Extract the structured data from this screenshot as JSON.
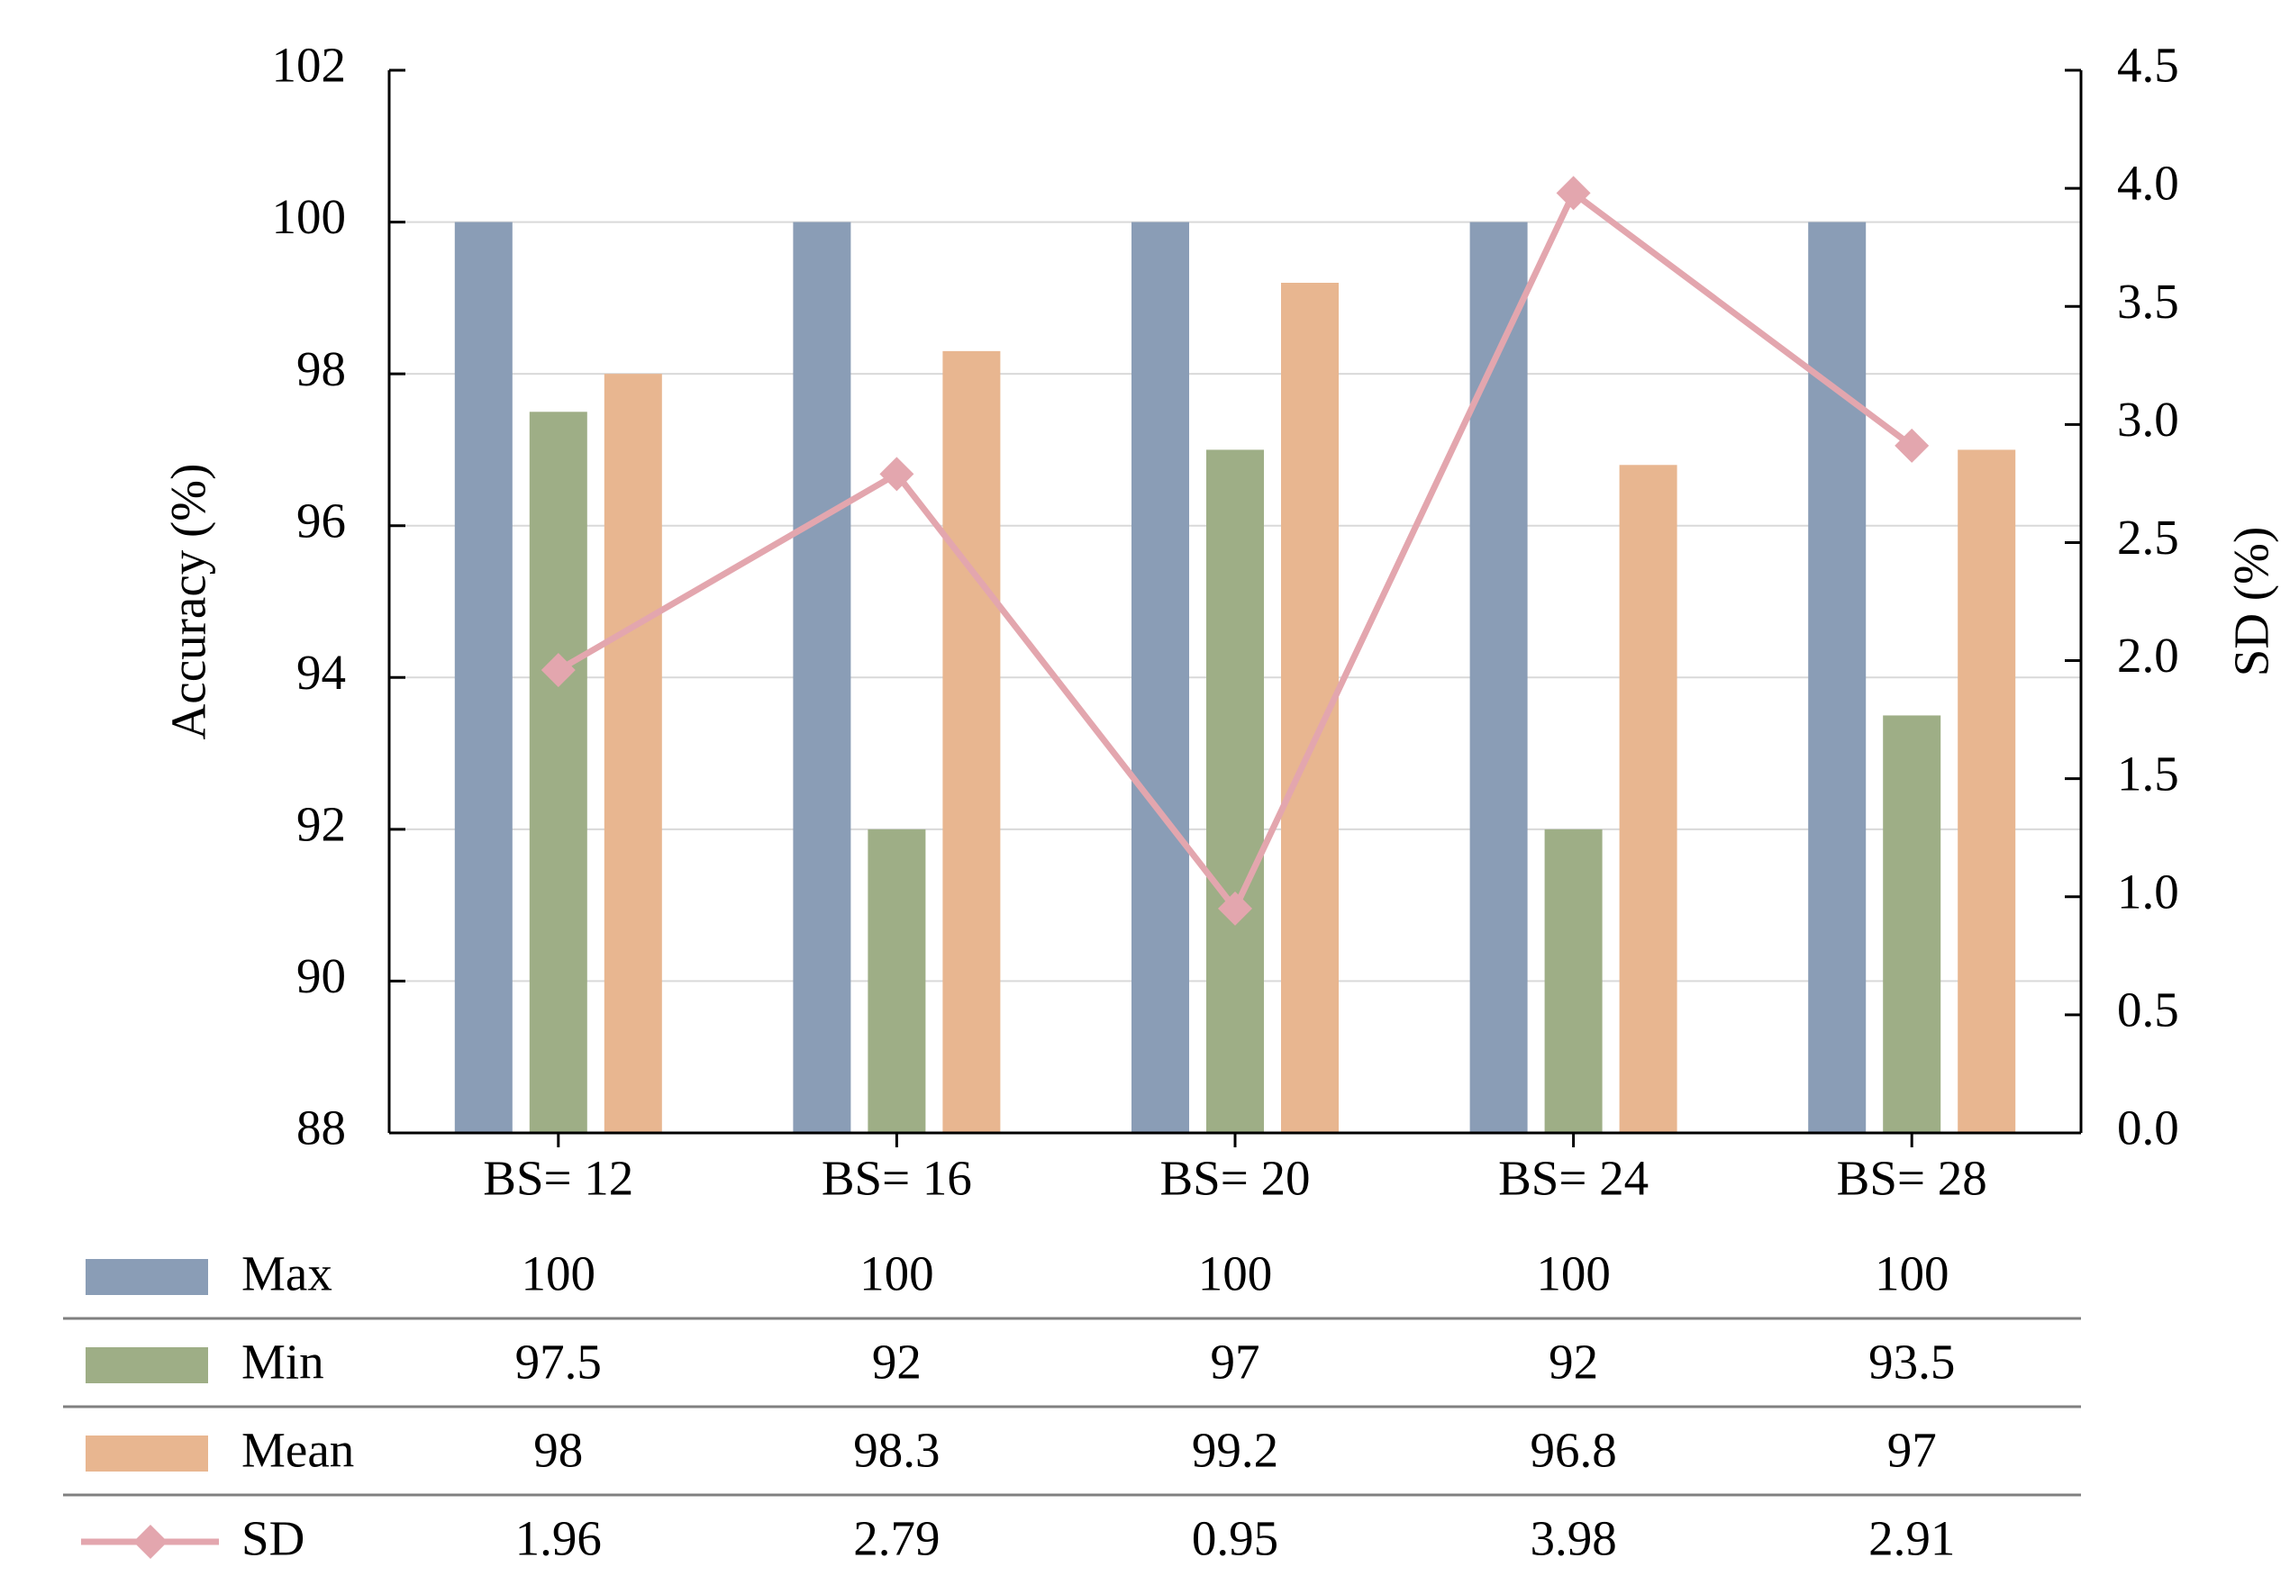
{
  "chart_data": {
    "type": "bar",
    "categories": [
      "BS= 12",
      "BS= 16",
      "BS= 20",
      "BS= 24",
      "BS= 28"
    ],
    "series": [
      {
        "name": "Max",
        "kind": "bar",
        "axis": "left",
        "color": "#8a9db6",
        "values": [
          100,
          100,
          100,
          100,
          100
        ],
        "labels": [
          "100",
          "100",
          "100",
          "100",
          "100"
        ]
      },
      {
        "name": "Min",
        "kind": "bar",
        "axis": "left",
        "color": "#9eae86",
        "values": [
          97.5,
          92,
          97,
          92,
          93.5
        ],
        "labels": [
          "97.5",
          "92",
          "97",
          "92",
          "93.5"
        ]
      },
      {
        "name": "Mean",
        "kind": "bar",
        "axis": "left",
        "color": "#e8b690",
        "values": [
          98,
          98.3,
          99.2,
          96.8,
          97
        ],
        "labels": [
          "98",
          "98.3",
          "99.2",
          "96.8",
          "97"
        ]
      },
      {
        "name": "SD",
        "kind": "line",
        "axis": "right",
        "color": "#e3a6ae",
        "marker": "diamond",
        "values": [
          1.96,
          2.79,
          0.95,
          3.98,
          2.91
        ],
        "labels": [
          "1.96",
          "2.79",
          "0.95",
          "3.98",
          "2.91"
        ]
      }
    ],
    "ylabel": "Accuracy (%)",
    "y2label": "SD (%)",
    "ylim": [
      88,
      102
    ],
    "y2lim": [
      0,
      4.5
    ],
    "yticks": [
      "88",
      "90",
      "92",
      "94",
      "96",
      "98",
      "100",
      "102"
    ],
    "y2ticks": [
      "0.0",
      "0.5",
      "1.0",
      "1.5",
      "2.0",
      "2.5",
      "3.0",
      "3.5",
      "4.0",
      "4.5"
    ],
    "grid": true,
    "legend": "data table below the chart"
  }
}
